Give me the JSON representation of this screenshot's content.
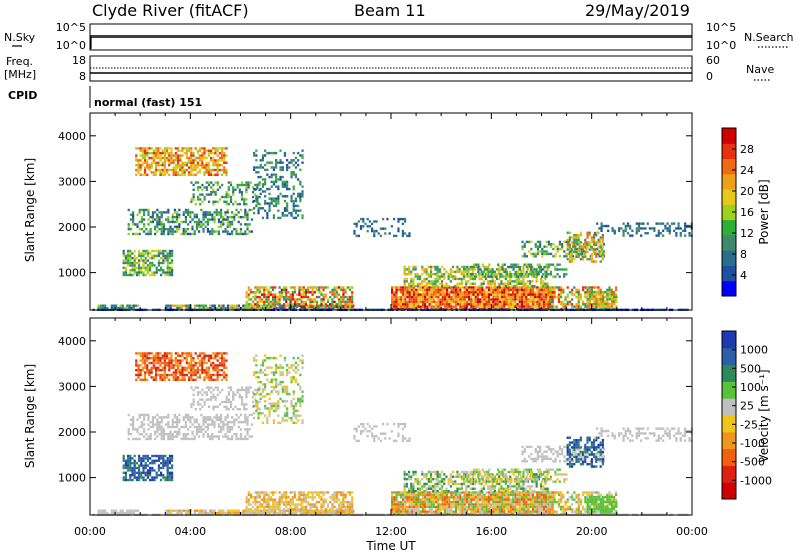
{
  "header": {
    "station": "Clyde River (fitACF)",
    "beam": "Beam 11",
    "date": "29/May/2019"
  },
  "noise_panel": {
    "left_label": "N.Sky",
    "left_ticks": [
      "10^5",
      "10^0"
    ],
    "right_label": "N.Search",
    "right_ticks": [
      "10^5",
      "10^0"
    ]
  },
  "freq_panel": {
    "left_label_1": "Freq.",
    "left_label_2": "[MHz]",
    "left_ticks": [
      "18",
      "8"
    ],
    "right_label": "Nave",
    "right_ticks": [
      "60",
      "0"
    ]
  },
  "cpid": {
    "label": "CPID",
    "value": "normal (fast) 151"
  },
  "colors": {
    "power_scale": [
      "#0000ff",
      "#1f4fa0",
      "#2b6e8c",
      "#3c8a6a",
      "#2fae3a",
      "#9fd11a",
      "#e8c81a",
      "#f0a018",
      "#ef6a10",
      "#e83010",
      "#d00000"
    ],
    "velocity_scale": [
      "#1f3ab0",
      "#2d5fa8",
      "#2c8a5a",
      "#57c23a",
      "#c0c0c0",
      "#f0c419",
      "#f0961a",
      "#ef6010",
      "#e02010",
      "#d00000"
    ]
  },
  "chart_data": [
    {
      "type": "heatmap",
      "name": "power",
      "ylabel": "Slant Range [km]",
      "yticks": [
        "1000",
        "2000",
        "3000",
        "4000"
      ],
      "ylim": [
        180,
        4500
      ],
      "colorbar_label": "Power [dB]",
      "colorbar_ticks": [
        "4",
        "8",
        "12",
        "16",
        "20",
        "24",
        "28"
      ],
      "clim": [
        0,
        32
      ]
    },
    {
      "type": "heatmap",
      "name": "velocity",
      "ylabel": "Slant Range [km]",
      "yticks": [
        "1000",
        "2000",
        "3000",
        "4000"
      ],
      "ylim": [
        180,
        4500
      ],
      "colorbar_label": "Velocity [m s⁻¹]",
      "colorbar_ticks": [
        "1000",
        "500",
        "100",
        "25",
        "-25",
        "-100",
        "-500",
        "-1000"
      ],
      "xlabel": "Time UT",
      "xticks": [
        "00:00",
        "04:00",
        "08:00",
        "12:00",
        "16:00",
        "20:00",
        "00:00"
      ],
      "xlim_hours": [
        0,
        24
      ]
    }
  ]
}
